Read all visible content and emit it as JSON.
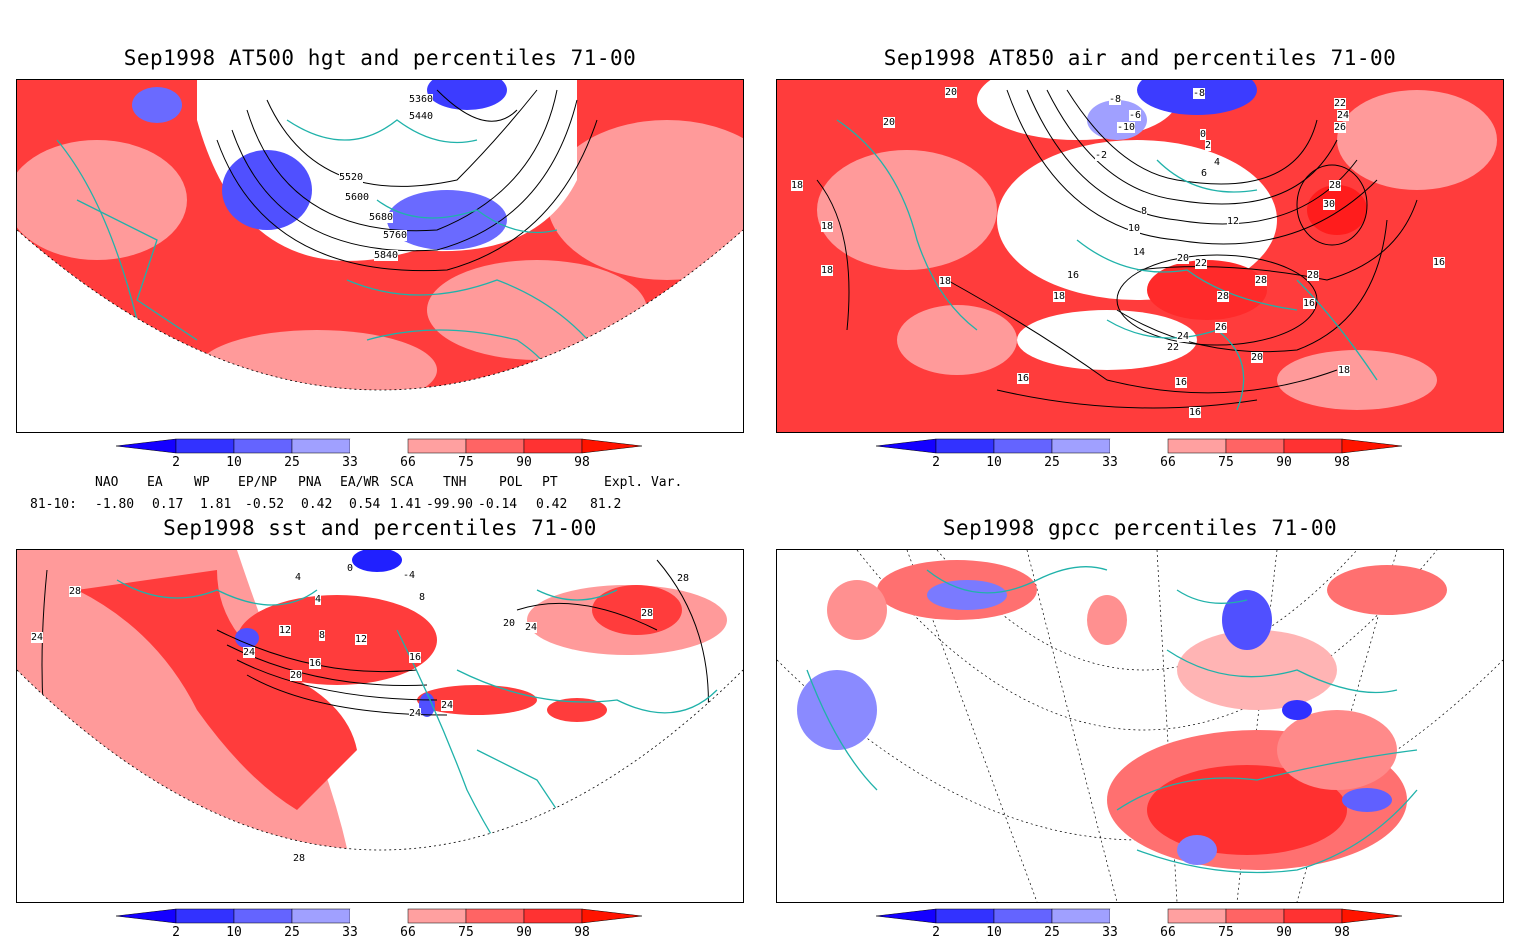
{
  "panels": [
    {
      "title": "Sep1998 AT500 hgt and percentiles 71-00",
      "contour_labels": [
        "5360",
        "5440",
        "5520",
        "5600",
        "5680",
        "5760",
        "5840"
      ]
    },
    {
      "title": "Sep1998 AT850 air and percentiles 71-00",
      "contour_labels": [
        "20",
        "20",
        "-8",
        "-8",
        "-6",
        "-10",
        "-2",
        "0",
        "2",
        "4",
        "6",
        "8",
        "10",
        "12",
        "14",
        "16",
        "18",
        "18",
        "18",
        "18",
        "20",
        "22",
        "22",
        "24",
        "26",
        "28",
        "28",
        "30",
        "28",
        "28",
        "26",
        "24",
        "22",
        "20",
        "16",
        "16",
        "16",
        "18",
        "16",
        "16",
        "18"
      ]
    },
    {
      "title": "Sep1998 sst and percentiles 71-00",
      "contour_labels": [
        "28",
        "24",
        "0",
        "4",
        "-4",
        "4",
        "8",
        "12",
        "8",
        "12",
        "16",
        "24",
        "16",
        "20",
        "20",
        "24",
        "24",
        "24",
        "28",
        "28",
        "28"
      ]
    },
    {
      "title": "Sep1998 gpcc percentiles 71-00",
      "contour_labels": []
    }
  ],
  "colorbar": {
    "ticks": [
      "2",
      "10",
      "25",
      "33",
      "66",
      "75",
      "90",
      "98"
    ],
    "colors": [
      "#1400ff",
      "#3232ff",
      "#6464ff",
      "#a0a0ff",
      "#ffffff",
      "#ffa0a0",
      "#ff6464",
      "#ff3232",
      "#ff1400"
    ]
  },
  "teleconnection": {
    "headers": [
      "NAO",
      "EA",
      "WP",
      "EP/NP",
      "PNA",
      "EA/WR",
      "SCA",
      "TNH",
      "POL",
      "PT",
      "Expl. Var."
    ],
    "row_label": "81-10:",
    "values": [
      "-1.80",
      "0.17",
      "1.81",
      "-0.52",
      "0.42",
      "0.54",
      "1.41",
      "-99.90",
      "-0.14",
      "0.42",
      "81.2"
    ]
  },
  "map_colors": {
    "coast": "#20b2aa",
    "red": "#ff3c3c",
    "light_red": "#ff9a9a",
    "blue": "#5050ff",
    "light_blue": "#a0a0ff"
  }
}
